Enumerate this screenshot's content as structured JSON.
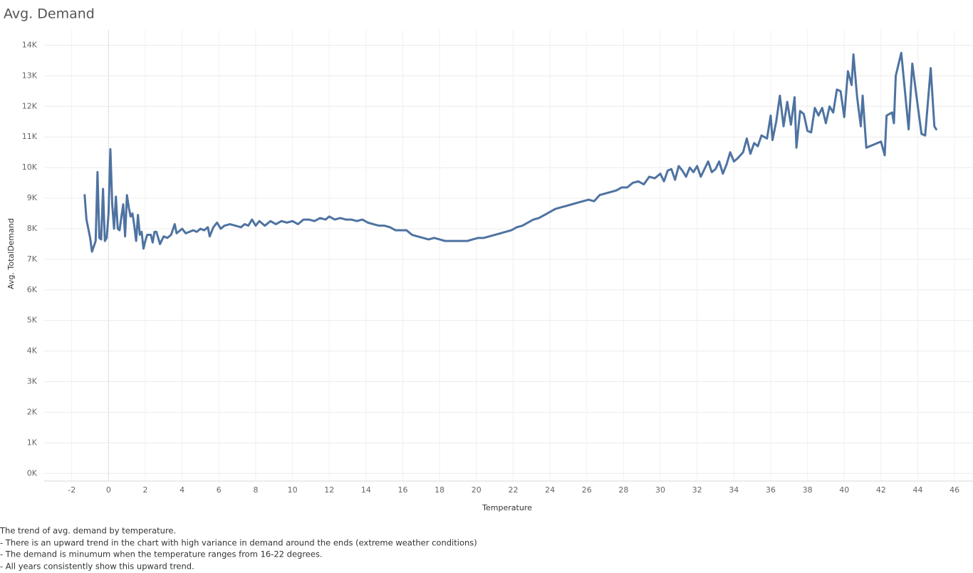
{
  "chart_data": {
    "type": "line",
    "title": "Avg. Demand",
    "x_axis_title": "Temperature",
    "y_axis_title": "Avg. TotalDemand",
    "annotations": [
      "The trend of avg. demand by temperature.",
      "- There is an upward trend in the chart with high variance in demand around the ends (extreme weather conditions)",
      "- The demand is minumum when the temperature ranges from 16-22 degrees.",
      "- All years consistently show this upward trend."
    ],
    "color": "#4e73a1",
    "grid": true,
    "x_reference_line": 0,
    "xlim": [
      -3.5,
      47
    ],
    "ylim": [
      -250,
      14500
    ],
    "xticks": [
      -2,
      0,
      2,
      4,
      6,
      8,
      10,
      12,
      14,
      16,
      18,
      20,
      22,
      24,
      26,
      28,
      30,
      32,
      34,
      36,
      38,
      40,
      42,
      44,
      46
    ],
    "yticks": [
      {
        "value": 0,
        "label": "0K"
      },
      {
        "value": 1000,
        "label": "1K"
      },
      {
        "value": 2000,
        "label": "2K"
      },
      {
        "value": 3000,
        "label": "3K"
      },
      {
        "value": 4000,
        "label": "4K"
      },
      {
        "value": 5000,
        "label": "5K"
      },
      {
        "value": 6000,
        "label": "6K"
      },
      {
        "value": 7000,
        "label": "7K"
      },
      {
        "value": 8000,
        "label": "8K"
      },
      {
        "value": 9000,
        "label": "9K"
      },
      {
        "value": 10000,
        "label": "10K"
      },
      {
        "value": 11000,
        "label": "11K"
      },
      {
        "value": 12000,
        "label": "12K"
      },
      {
        "value": 13000,
        "label": "13K"
      },
      {
        "value": 14000,
        "label": "14K"
      }
    ],
    "x": [
      -1.3,
      -1.2,
      -1.0,
      -0.9,
      -0.7,
      -0.6,
      -0.5,
      -0.4,
      -0.3,
      -0.2,
      -0.1,
      0.0,
      0.1,
      0.2,
      0.3,
      0.4,
      0.5,
      0.6,
      0.7,
      0.8,
      0.9,
      1.0,
      1.1,
      1.2,
      1.3,
      1.4,
      1.5,
      1.6,
      1.7,
      1.8,
      1.9,
      2.0,
      2.1,
      2.3,
      2.4,
      2.5,
      2.6,
      2.8,
      3.0,
      3.2,
      3.4,
      3.6,
      3.7,
      3.9,
      4.0,
      4.2,
      4.4,
      4.6,
      4.8,
      5.0,
      5.2,
      5.4,
      5.5,
      5.7,
      5.9,
      6.1,
      6.3,
      6.6,
      6.9,
      7.2,
      7.4,
      7.6,
      7.8,
      8.0,
      8.2,
      8.5,
      8.8,
      9.1,
      9.4,
      9.7,
      10.0,
      10.3,
      10.6,
      10.9,
      11.2,
      11.5,
      11.8,
      12.0,
      12.3,
      12.6,
      12.9,
      13.2,
      13.5,
      13.8,
      14.1,
      14.4,
      14.7,
      15.0,
      15.3,
      15.6,
      15.9,
      16.2,
      16.5,
      16.8,
      17.1,
      17.4,
      17.7,
      18.0,
      18.3,
      18.6,
      18.9,
      19.2,
      19.5,
      19.8,
      20.1,
      20.4,
      20.7,
      21.0,
      21.3,
      21.6,
      21.9,
      22.2,
      22.5,
      22.8,
      23.1,
      23.4,
      23.7,
      24.0,
      24.3,
      24.6,
      24.9,
      25.2,
      25.5,
      25.8,
      26.1,
      26.4,
      26.7,
      27.0,
      27.3,
      27.6,
      27.9,
      28.2,
      28.5,
      28.8,
      29.1,
      29.4,
      29.7,
      30.0,
      30.2,
      30.4,
      30.6,
      30.8,
      31.0,
      31.2,
      31.4,
      31.6,
      31.8,
      32.0,
      32.2,
      32.4,
      32.6,
      32.8,
      33.0,
      33.2,
      33.4,
      33.6,
      33.8,
      34.0,
      34.2,
      34.5,
      34.7,
      34.9,
      35.1,
      35.3,
      35.5,
      35.8,
      36.0,
      36.1,
      36.3,
      36.5,
      36.7,
      36.9,
      37.1,
      37.3,
      37.4,
      37.6,
      37.8,
      38.0,
      38.2,
      38.4,
      38.6,
      38.8,
      39.0,
      39.2,
      39.4,
      39.6,
      39.8,
      40.0,
      40.2,
      40.4,
      40.5,
      40.7,
      40.9,
      41.0,
      41.2,
      42.0,
      42.2,
      42.3,
      42.6,
      42.7,
      42.8,
      43.1,
      43.5,
      43.7,
      44.0,
      44.2,
      44.4,
      44.7,
      44.9,
      45.0
    ],
    "values": [
      9100,
      8300,
      7700,
      7250,
      7600,
      9850,
      7700,
      7650,
      9300,
      7600,
      7700,
      8500,
      10600,
      8800,
      8000,
      9050,
      8000,
      7950,
      8400,
      8800,
      7750,
      9100,
      8700,
      8400,
      8500,
      8100,
      7600,
      8450,
      7800,
      7900,
      7350,
      7600,
      7800,
      7800,
      7550,
      7900,
      7900,
      7500,
      7750,
      7700,
      7800,
      8150,
      7850,
      7950,
      8000,
      7850,
      7900,
      7950,
      7900,
      8000,
      7950,
      8050,
      7750,
      8050,
      8200,
      8000,
      8100,
      8150,
      8100,
      8050,
      8150,
      8100,
      8300,
      8100,
      8250,
      8100,
      8250,
      8150,
      8250,
      8200,
      8250,
      8150,
      8300,
      8300,
      8250,
      8350,
      8300,
      8400,
      8300,
      8350,
      8300,
      8300,
      8250,
      8300,
      8200,
      8150,
      8100,
      8100,
      8050,
      7950,
      7950,
      7950,
      7800,
      7750,
      7700,
      7650,
      7700,
      7650,
      7600,
      7600,
      7600,
      7600,
      7600,
      7650,
      7700,
      7700,
      7750,
      7800,
      7850,
      7900,
      7950,
      8050,
      8100,
      8200,
      8300,
      8350,
      8450,
      8550,
      8650,
      8700,
      8750,
      8800,
      8850,
      8900,
      8950,
      8900,
      9100,
      9150,
      9200,
      9250,
      9350,
      9350,
      9500,
      9550,
      9450,
      9700,
      9650,
      9800,
      9550,
      9900,
      9950,
      9600,
      10050,
      9900,
      9700,
      10000,
      9850,
      10050,
      9700,
      9950,
      10200,
      9850,
      9950,
      10200,
      9800,
      10100,
      10500,
      10200,
      10300,
      10500,
      10950,
      10450,
      10800,
      10700,
      11050,
      10950,
      11700,
      10900,
      11500,
      12350,
      11350,
      12150,
      11400,
      12300,
      10650,
      11850,
      11750,
      11200,
      11150,
      11950,
      11700,
      11950,
      11450,
      12000,
      11800,
      12550,
      12500,
      11650,
      13150,
      12700,
      13700,
      12300,
      11350,
      12350,
      10650,
      10850,
      10400,
      11700,
      11800,
      11450,
      13000,
      13750,
      11250,
      13400,
      12000,
      11100,
      11050,
      13250,
      11350,
      11250
    ]
  }
}
